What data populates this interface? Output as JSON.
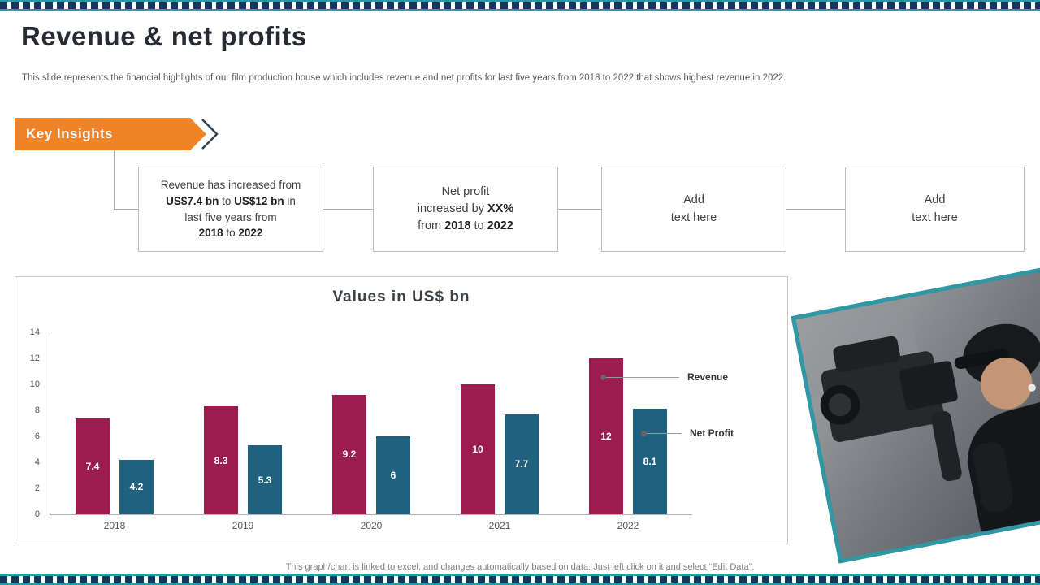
{
  "page": {
    "title": "Revenue & net profits",
    "subtitle": "This slide represents the financial highlights of our film production house which includes revenue and net profits for last five years from 2018 to 2022 that shows highest revenue in 2022.",
    "footnote": "This graph/chart is linked to excel, and changes automatically based on data. Just left click on it and select “Edit Data”."
  },
  "insights": {
    "banner_label": "Key Insights",
    "boxes": [
      {
        "segments": [
          {
            "t": "Revenue has increased from",
            "b": false,
            "br": true
          },
          {
            "t": "US$7.4 bn",
            "b": true
          },
          {
            "t": " to ",
            "b": false
          },
          {
            "t": "US$12 bn",
            "b": true
          },
          {
            "t": " in",
            "b": false,
            "br": true
          },
          {
            "t": "last five years from",
            "b": false,
            "br": true
          },
          {
            "t": "2018",
            "b": true
          },
          {
            "t": " to ",
            "b": false
          },
          {
            "t": "2022",
            "b": true
          }
        ]
      },
      {
        "segments": [
          {
            "t": "Net profit",
            "b": false,
            "br": true
          },
          {
            "t": "increased by ",
            "b": false
          },
          {
            "t": "XX%",
            "b": true,
            "br": true
          },
          {
            "t": "from ",
            "b": false
          },
          {
            "t": "2018",
            "b": true
          },
          {
            "t": " to ",
            "b": false
          },
          {
            "t": "2022",
            "b": true
          }
        ]
      },
      {
        "segments": [
          {
            "t": "Add",
            "b": false,
            "br": true
          },
          {
            "t": "text here",
            "b": false
          }
        ]
      },
      {
        "segments": [
          {
            "t": "Add",
            "b": false,
            "br": true
          },
          {
            "t": "text here",
            "b": false
          }
        ]
      }
    ]
  },
  "chart_data": {
    "type": "bar",
    "title": "Values in US$ bn",
    "categories": [
      "2018",
      "2019",
      "2020",
      "2021",
      "2022"
    ],
    "series": [
      {
        "name": "Revenue",
        "color": "#9B1C4F",
        "values": [
          7.4,
          8.3,
          9.2,
          10,
          12
        ]
      },
      {
        "name": "Net Profit",
        "color": "#20617F",
        "values": [
          4.2,
          5.3,
          6,
          7.7,
          8.1
        ]
      }
    ],
    "xlabel": "",
    "ylabel": "",
    "ylim": [
      0,
      14
    ],
    "yticks": [
      0,
      2,
      4,
      6,
      8,
      10,
      12,
      14
    ],
    "grid": false,
    "legend_position": "right-callouts",
    "value_labels": "inside-bars"
  },
  "colors": {
    "accent_orange": "#F08326",
    "strip_teal": "#2E98A4",
    "strip_navy": "#16375B",
    "revenue_bar": "#9B1C4F",
    "net_profit_bar": "#20617F"
  }
}
